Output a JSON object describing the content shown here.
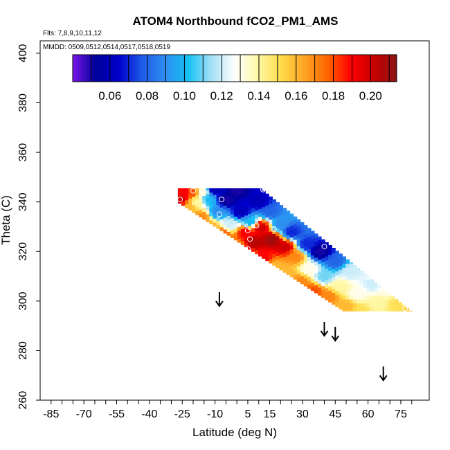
{
  "chart_data": {
    "type": "heatmap",
    "title": "ATOM4 Northbound fCO2_PM1_AMS",
    "flights_note": "Flts: 7,8,9,10,11,12",
    "mmdd_note": "MMDD: 0509,0512,0514,0517,0518,0519",
    "xlabel": "Latitude (deg N)",
    "ylabel": "Theta (C)",
    "xlim": [
      -90,
      88
    ],
    "ylim": [
      260,
      405
    ],
    "x_ticks": [
      -85,
      -70,
      -55,
      -40,
      -25,
      -10,
      5,
      15,
      30,
      45,
      60,
      75
    ],
    "x_tick_labels": [
      "-85",
      "-70",
      "-55",
      "-40",
      "-25",
      "-10",
      "5",
      "15",
      "30",
      "45",
      "60",
      "75"
    ],
    "y_ticks": [
      260,
      280,
      300,
      320,
      340,
      360,
      380,
      400
    ],
    "y_tick_labels": [
      "260",
      "280",
      "300",
      "320",
      "340",
      "360",
      "380",
      "400"
    ],
    "colorbar": {
      "range": [
        0.04,
        0.214
      ],
      "ticks": [
        0.06,
        0.08,
        0.1,
        0.12,
        0.14,
        0.16,
        0.18,
        0.2
      ],
      "tick_labels": [
        "0.06",
        "0.08",
        "0.10",
        "0.12",
        "0.14",
        "0.16",
        "0.18",
        "0.20"
      ],
      "colors": [
        "#7b16e8",
        "#000099",
        "#0000cc",
        "#1e5be6",
        "#2e8df0",
        "#15c2f5",
        "#a6e0f5",
        "#ffffff",
        "#fff8a6",
        "#ffdc4a",
        "#ffa526",
        "#ff6600",
        "#ff0000",
        "#c80000",
        "#8c1414"
      ]
    },
    "tropopause_arrows": [
      {
        "lat": -8,
        "theta": 298
      },
      {
        "lat": 40,
        "theta": 286
      },
      {
        "lat": 45,
        "theta": 284
      },
      {
        "lat": 67,
        "theta": 268
      }
    ],
    "field": [
      {
        "lat": -26,
        "theta": 341,
        "value": 0.2
      },
      {
        "lat": -24,
        "theta": 344,
        "value": 0.19
      },
      {
        "lat": -22,
        "theta": 338,
        "value": 0.16
      },
      {
        "lat": -20,
        "theta": 344,
        "value": 0.18
      },
      {
        "lat": -18,
        "theta": 340,
        "value": 0.14
      },
      {
        "lat": -16,
        "theta": 344,
        "value": 0.13
      },
      {
        "lat": -16,
        "theta": 334,
        "value": 0.17
      },
      {
        "lat": -13,
        "theta": 341,
        "value": 0.1
      },
      {
        "lat": -12,
        "theta": 330,
        "value": 0.16
      },
      {
        "lat": -10,
        "theta": 345,
        "value": 0.06
      },
      {
        "lat": -9,
        "theta": 336,
        "value": 0.09
      },
      {
        "lat": -7,
        "theta": 327,
        "value": 0.18
      },
      {
        "lat": -5,
        "theta": 341,
        "value": 0.05
      },
      {
        "lat": -3,
        "theta": 331,
        "value": 0.12
      },
      {
        "lat": 0,
        "theta": 345,
        "value": 0.05
      },
      {
        "lat": 0,
        "theta": 322,
        "value": 0.17
      },
      {
        "lat": 2,
        "theta": 336,
        "value": 0.06
      },
      {
        "lat": 4,
        "theta": 328,
        "value": 0.19
      },
      {
        "lat": 5,
        "theta": 318,
        "value": 0.17
      },
      {
        "lat": 6,
        "theta": 332,
        "value": 0.1
      },
      {
        "lat": 8,
        "theta": 324,
        "value": 0.205
      },
      {
        "lat": 10,
        "theta": 340,
        "value": 0.06
      },
      {
        "lat": 11,
        "theta": 330,
        "value": 0.2
      },
      {
        "lat": 12,
        "theta": 317,
        "value": 0.19
      },
      {
        "lat": 15,
        "theta": 336,
        "value": 0.08
      },
      {
        "lat": 16,
        "theta": 325,
        "value": 0.21
      },
      {
        "lat": 17,
        "theta": 314,
        "value": 0.16
      },
      {
        "lat": 20,
        "theta": 331,
        "value": 0.09
      },
      {
        "lat": 22,
        "theta": 322,
        "value": 0.2
      },
      {
        "lat": 23,
        "theta": 311,
        "value": 0.16
      },
      {
        "lat": 25,
        "theta": 328,
        "value": 0.07
      },
      {
        "lat": 27,
        "theta": 318,
        "value": 0.17
      },
      {
        "lat": 29,
        "theta": 308,
        "value": 0.17
      },
      {
        "lat": 32,
        "theta": 323,
        "value": 0.07
      },
      {
        "lat": 33,
        "theta": 313,
        "value": 0.13
      },
      {
        "lat": 35,
        "theta": 304,
        "value": 0.18
      },
      {
        "lat": 38,
        "theta": 320,
        "value": 0.05
      },
      {
        "lat": 40,
        "theta": 310,
        "value": 0.11
      },
      {
        "lat": 42,
        "theta": 302,
        "value": 0.17
      },
      {
        "lat": 45,
        "theta": 316,
        "value": 0.08
      },
      {
        "lat": 47,
        "theta": 306,
        "value": 0.14
      },
      {
        "lat": 50,
        "theta": 298,
        "value": 0.16
      },
      {
        "lat": 52,
        "theta": 312,
        "value": 0.12
      },
      {
        "lat": 55,
        "theta": 303,
        "value": 0.13
      },
      {
        "lat": 57,
        "theta": 296,
        "value": 0.15
      },
      {
        "lat": 60,
        "theta": 314,
        "value": 0.12
      },
      {
        "lat": 62,
        "theta": 307,
        "value": 0.12
      },
      {
        "lat": 64,
        "theta": 299,
        "value": 0.14
      },
      {
        "lat": 66,
        "theta": 310,
        "value": 0.14
      },
      {
        "lat": 70,
        "theta": 305,
        "value": 0.13
      },
      {
        "lat": 74,
        "theta": 299,
        "value": 0.15
      },
      {
        "lat": 78,
        "theta": 300,
        "value": 0.15
      },
      {
        "lat": 81,
        "theta": 298,
        "value": 0.16
      }
    ],
    "samples": [
      {
        "lat": -20,
        "theta": 344.5
      },
      {
        "lat": -26,
        "theta": 341
      },
      {
        "lat": -7,
        "theta": 341
      },
      {
        "lat": -8,
        "theta": 335
      },
      {
        "lat": 12,
        "theta": 345
      },
      {
        "lat": 5,
        "theta": 328.5
      },
      {
        "lat": 6,
        "theta": 325
      },
      {
        "lat": 9,
        "theta": 330.5
      },
      {
        "lat": 17,
        "theta": 329
      },
      {
        "lat": 5,
        "theta": 321
      },
      {
        "lat": 40,
        "theta": 322
      },
      {
        "lat": 61,
        "theta": 313.5
      },
      {
        "lat": 61,
        "theta": 295
      },
      {
        "lat": 55,
        "theta": 319
      },
      {
        "lat": 77,
        "theta": 297
      }
    ]
  }
}
